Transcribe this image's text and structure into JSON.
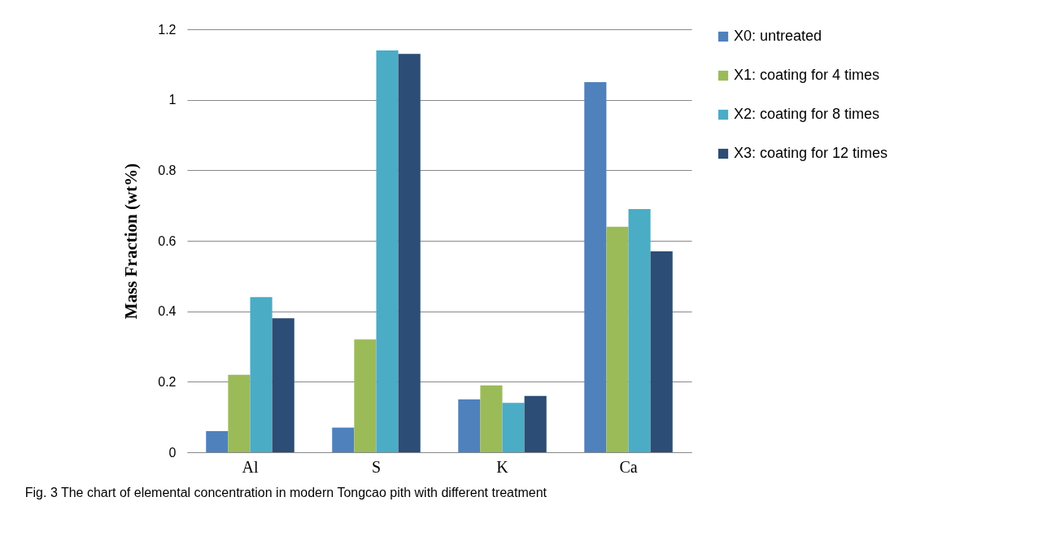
{
  "chart_data": {
    "type": "bar",
    "ylabel": "Mass Fraction (wt%)",
    "categories": [
      "Al",
      "S",
      "K",
      "Ca"
    ],
    "series": [
      {
        "name": "X0: untreated",
        "color": "#4f81bd",
        "values": [
          0.06,
          0.07,
          0.15,
          1.05
        ]
      },
      {
        "name": "X1: coating for 4 times",
        "color": "#9bbb59",
        "values": [
          0.22,
          0.32,
          0.19,
          0.64
        ]
      },
      {
        "name": "X2: coating for 8 times",
        "color": "#4bacc6",
        "values": [
          0.44,
          1.14,
          0.14,
          0.69
        ]
      },
      {
        "name": "X3: coating for 12 times",
        "color": "#2c4d75",
        "values": [
          0.38,
          1.13,
          0.16,
          0.57
        ]
      }
    ],
    "ylim": [
      0,
      1.2
    ],
    "yticks": [
      0,
      0.2,
      0.4,
      0.6,
      0.8,
      1,
      1.2
    ],
    "grid": "y",
    "legend": "right",
    "annotations": [
      "Fig. 3  The chart of elemental concentration in modern Tongcao pith with different treatment"
    ]
  }
}
